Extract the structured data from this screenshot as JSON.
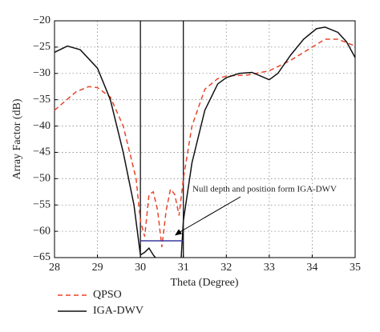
{
  "chart_data": {
    "type": "line",
    "xlabel": "Theta (Degree)",
    "ylabel": "Array Factor (dB)",
    "xlim": [
      28,
      35
    ],
    "ylim": [
      -65,
      -20
    ],
    "xticks": [
      28,
      29,
      30,
      31,
      32,
      33,
      34,
      35
    ],
    "yticks": [
      {
        "value": -65,
        "label": "−65"
      },
      {
        "value": -60,
        "label": "−60"
      },
      {
        "value": -55,
        "label": "−55"
      },
      {
        "value": -50,
        "label": "−50"
      },
      {
        "value": -45,
        "label": "−45"
      },
      {
        "value": -40,
        "label": "−40"
      },
      {
        "value": -35,
        "label": "−35"
      },
      {
        "value": -30,
        "label": "−30"
      },
      {
        "value": -25,
        "label": "−25"
      },
      {
        "value": -20,
        "label": "−20"
      }
    ],
    "grid": true,
    "legend": "bottom-left",
    "series": [
      {
        "name": "QPSO",
        "color": "#e8452a",
        "dashed": true,
        "x": [
          28,
          28.5,
          28.8,
          29.0,
          29.3,
          29.6,
          29.9,
          30.0,
          30.1,
          30.2,
          30.3,
          30.4,
          30.5,
          30.6,
          30.7,
          30.8,
          30.9,
          31.0,
          31.2,
          31.5,
          31.8,
          32.0,
          32.5,
          33.0,
          33.5,
          34.0,
          34.3,
          34.6,
          35
        ],
        "values": [
          -37,
          -33.5,
          -32.5,
          -32.7,
          -34.5,
          -40,
          -50,
          -58,
          -61,
          -53,
          -52.5,
          -56,
          -63,
          -56,
          -52,
          -53,
          -57,
          -50,
          -40,
          -33,
          -31,
          -30.5,
          -30.3,
          -29.5,
          -27.5,
          -25,
          -23.5,
          -23.5,
          -24.8
        ]
      },
      {
        "name": "IGA-DWV",
        "color": "#111111",
        "dashed": false,
        "x": [
          28,
          28.3,
          28.6,
          29.0,
          29.3,
          29.6,
          29.85,
          30.0,
          30.1,
          30.2,
          30.3,
          30.35,
          30.6,
          30.95,
          31.0,
          31.2,
          31.5,
          31.8,
          32.0,
          32.3,
          32.6,
          32.8,
          33.0,
          33.2,
          33.5,
          33.8,
          34.1,
          34.3,
          34.6,
          34.8,
          35
        ],
        "values": [
          -26,
          -24.8,
          -25.5,
          -29,
          -35,
          -45,
          -55,
          -64.5,
          -64,
          -63.2,
          -64.5,
          -65,
          null,
          -65,
          -58,
          -47,
          -37,
          -32,
          -30.8,
          -30,
          -29.8,
          -30.5,
          -31.2,
          -30,
          -26.5,
          -23.5,
          -21.5,
          -21.2,
          -22.2,
          -24,
          -27
        ]
      }
    ],
    "null_band": {
      "x": [
        30,
        31
      ],
      "y": -61.8,
      "color": "#3a3aa0"
    },
    "annotation": {
      "text": "Null depth and position form IGA-DWV",
      "x": 30.8,
      "y": -60.8
    }
  }
}
